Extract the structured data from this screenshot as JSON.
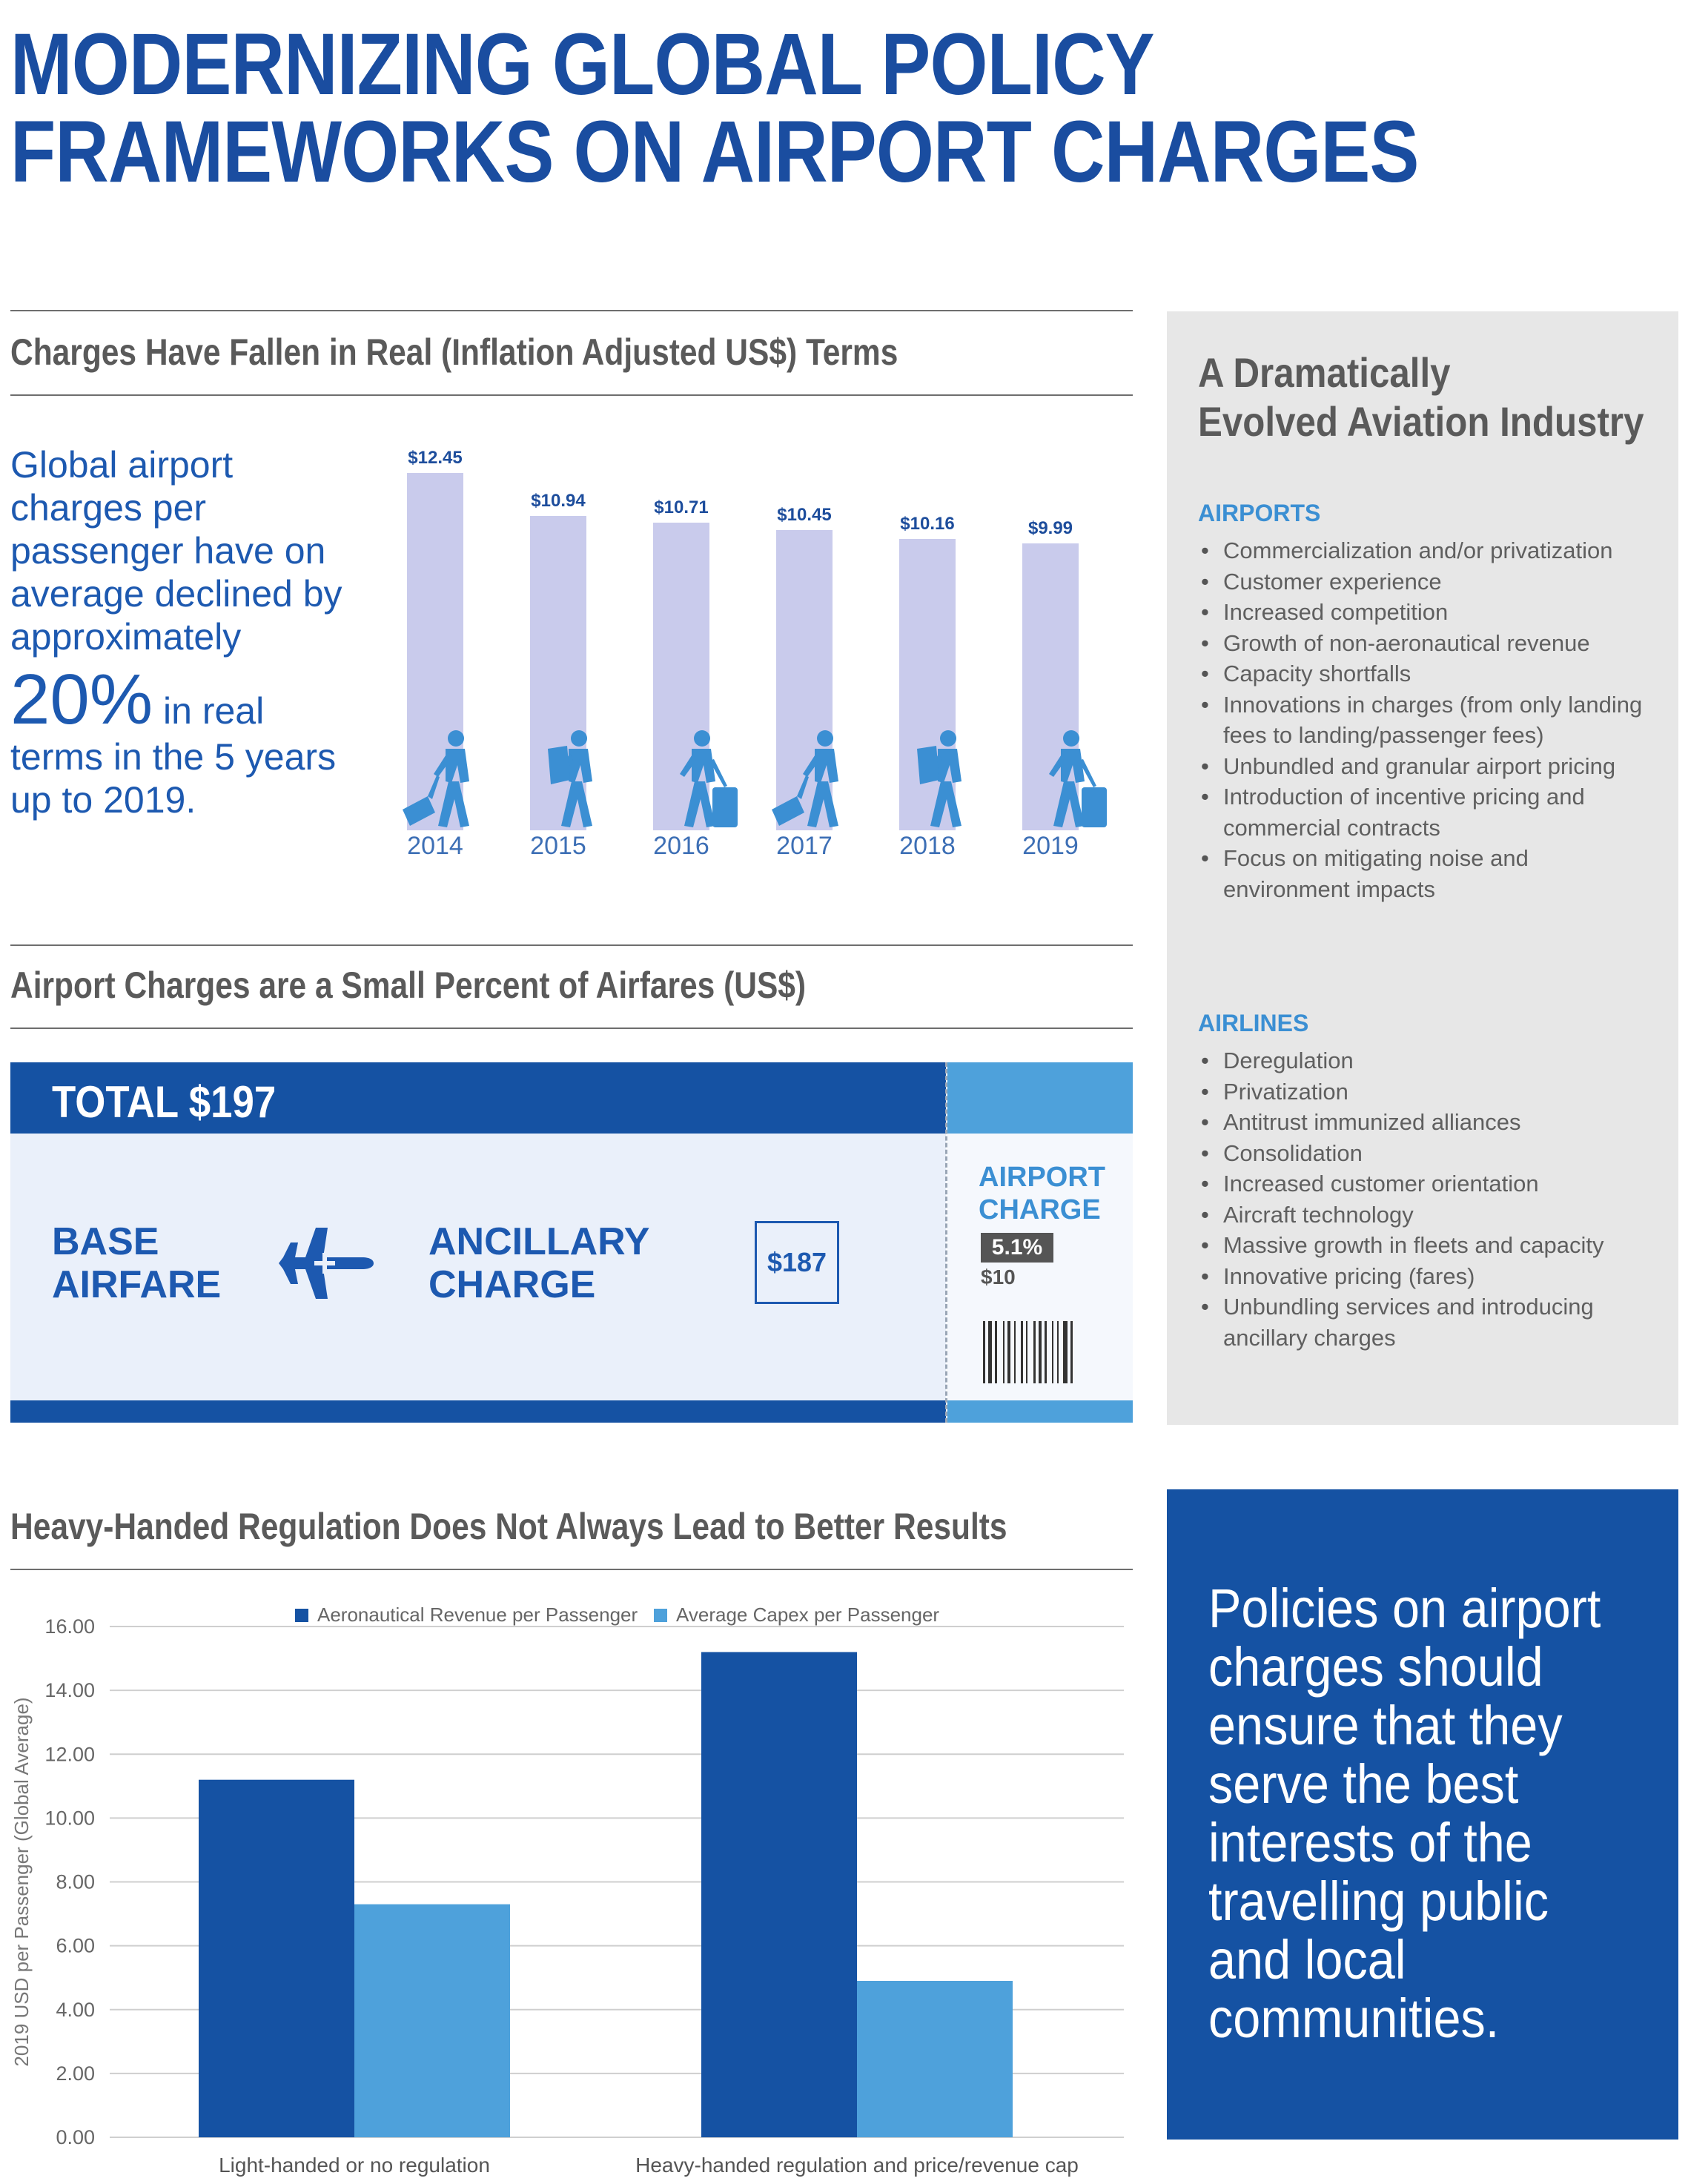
{
  "title": {
    "line1": "MODERNIZING GLOBAL POLICY",
    "line2": "FRAMEWORKS ON AIRPORT CHARGES"
  },
  "section1": {
    "heading": "Charges Have Fallen in Real (Inflation Adjusted US$) Terms",
    "text_intro": "Global airport charges per passenger have on average declined by approximately",
    "big_value": "20%",
    "text_after_big": " in real",
    "text_end": "terms in the 5 years up to 2019.",
    "bar_color": "#c9cbec",
    "person_color": "#3b8fd3",
    "person_icons": [
      "walking-with-suitcase-icon",
      "traveller-with-backpack-icon",
      "traveller-with-luggage-cart-icon",
      "backpacker-icon",
      "walking-with-suitcase-icon",
      "traveller-with-backpack-icon"
    ]
  },
  "chart_data": [
    {
      "type": "bar",
      "title": "Charges Have Fallen in Real (Inflation Adjusted US$) Terms",
      "categories": [
        "2014",
        "2015",
        "2016",
        "2017",
        "2018",
        "2019"
      ],
      "values": [
        12.45,
        10.94,
        10.71,
        10.45,
        10.16,
        9.99
      ],
      "value_labels": [
        "$12.45",
        "$10.94",
        "$10.71",
        "$10.45",
        "$10.16",
        "$9.99"
      ],
      "xlabel": "",
      "ylabel": "",
      "grid": false,
      "legend": "none"
    },
    {
      "type": "bar",
      "title": "Heavy-Handed Regulation Does Not Always Lead to Better Results",
      "categories": [
        "Light-handed or no regulation",
        "Heavy-handed regulation and price/revenue cap"
      ],
      "series": [
        {
          "name": "Aeronautical Revenue per Passenger",
          "values": [
            11.2,
            15.2
          ],
          "color": "#1552a3"
        },
        {
          "name": "Average Capex per Passenger",
          "values": [
            7.3,
            4.9
          ],
          "color": "#4ea1db"
        }
      ],
      "xlabel": "",
      "ylabel": "2019 USD per Passenger (Global Average)",
      "ylim": [
        0,
        16
      ],
      "yticks": [
        "0.00",
        "2.00",
        "4.00",
        "6.00",
        "8.00",
        "10.00",
        "12.00",
        "14.00",
        "16.00"
      ],
      "grid": true,
      "legend": "top"
    }
  ],
  "section2": {
    "heading": "Airport Charges are a Small Percent of Airfares (US$)",
    "total": "TOTAL $197",
    "base_line1": "BASE",
    "base_line2": "AIRFARE",
    "ancillary_line1": "ANCILLARY",
    "ancillary_line2": "CHARGE",
    "fare_value": "$187",
    "airport_line1": "AIRPORT",
    "airport_line2": "CHARGE",
    "airport_pct": "5.1%",
    "airport_amount": "$10",
    "dark_blue": "#1552a3",
    "light_blue": "#4ea1db"
  },
  "sidebar": {
    "title_line1": "A Dramatically",
    "title_line2": "Evolved Aviation Industry",
    "airports_heading": "AIRPORTS",
    "airports": [
      "Commercialization and/or privatization",
      "Customer experience",
      "Increased competition",
      "Growth of non-aeronautical revenue",
      "Capacity shortfalls",
      "Innovations in charges (from only landing fees to landing/passenger fees)",
      "Unbundled and granular airport pricing",
      "Introduction of incentive pricing and commercial contracts",
      "Focus on mitigating noise and environment impacts"
    ],
    "airlines_heading": "AIRLINES",
    "airlines": [
      "Deregulation",
      "Privatization",
      "Antitrust immunized alliances",
      "Consolidation",
      "Increased customer orientation",
      "Aircraft technology",
      "Massive growth in fleets and capacity",
      "Innovative pricing (fares)",
      "Unbundling services and introducing ancillary charges"
    ]
  },
  "section3": {
    "heading": "Heavy-Handed Regulation Does Not Always Lead to Better Results"
  },
  "quote": {
    "text": "Policies on airport charges should ensure that they serve the best interests of the travelling public and local communities."
  }
}
